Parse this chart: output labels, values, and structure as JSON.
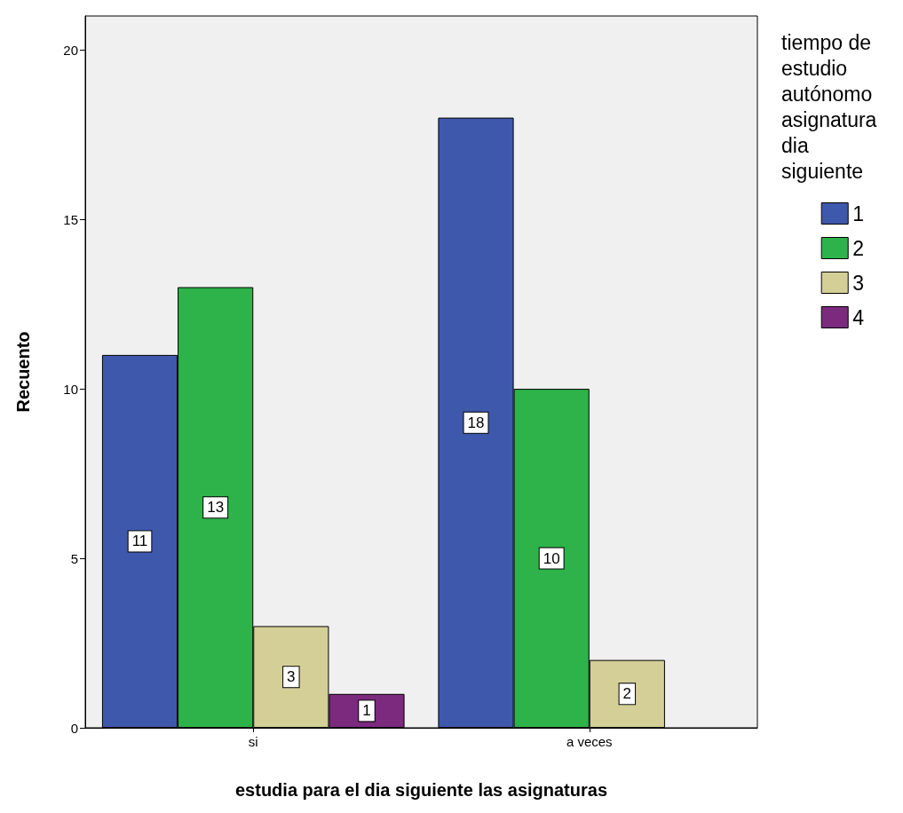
{
  "chart_data": {
    "type": "bar",
    "xlabel": "estudia para el dia siguiente las asignaturas",
    "ylabel": "Recuento",
    "legend_title": "tiempo de estudio autónomo asignatura dia siguiente",
    "categories": [
      "si",
      "a veces"
    ],
    "series": [
      {
        "name": "1",
        "color": "#3e58ac",
        "values": [
          11,
          18
        ]
      },
      {
        "name": "2",
        "color": "#2db34a",
        "values": [
          13,
          10
        ]
      },
      {
        "name": "3",
        "color": "#d4cf97",
        "values": [
          3,
          2
        ]
      },
      {
        "name": "4",
        "color": "#7b2a7e",
        "values": [
          1,
          null
        ]
      }
    ],
    "ylim": [
      0,
      21
    ],
    "yticks": [
      0,
      5,
      10,
      15,
      20
    ],
    "grid": false,
    "legend": "right",
    "data_labels": true
  }
}
